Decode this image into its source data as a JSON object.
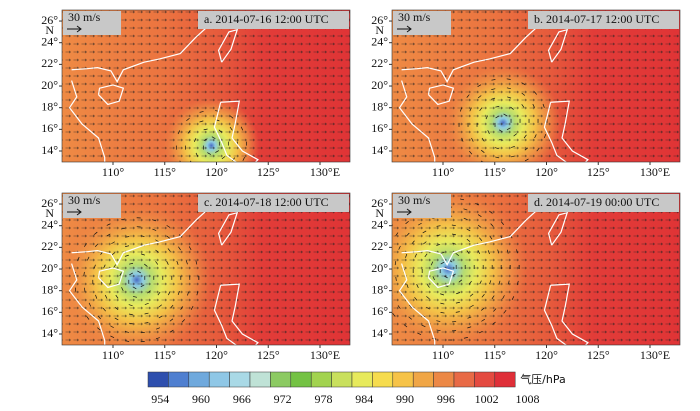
{
  "panels": [
    {
      "label": "a. 2014-07-16 12:00 UTC",
      "scale": "30 m/s"
    },
    {
      "label": "b. 2014-07-17 12:00 UTC",
      "scale": "30 m/s"
    },
    {
      "label": "c. 2014-07-18 12:00 UTC",
      "scale": "30 m/s"
    },
    {
      "label": "d. 2014-07-19 00:00 UTC",
      "scale": "30 m/s"
    }
  ],
  "yticks": [
    {
      "value": 26,
      "label": "26°"
    },
    {
      "value": 24,
      "label": "24°"
    },
    {
      "value": 22,
      "label": "22°"
    },
    {
      "value": 20,
      "label": "20°"
    },
    {
      "value": 18,
      "label": "18°"
    },
    {
      "value": 16,
      "label": "16°"
    },
    {
      "value": 14,
      "label": "14°"
    }
  ],
  "y_unit": "N",
  "xticks": [
    {
      "value": 110,
      "label": "110°"
    },
    {
      "value": 115,
      "label": "115°"
    },
    {
      "value": 120,
      "label": "120°"
    },
    {
      "value": 125,
      "label": "125°"
    },
    {
      "value": 130,
      "label": "130°E"
    }
  ],
  "colorbar": {
    "colors": [
      "#2e4fae",
      "#4f7fd0",
      "#6fa9dd",
      "#8fc7e6",
      "#a9d9e6",
      "#bfe2d6",
      "#8cca62",
      "#74c244",
      "#a2d34f",
      "#c9e05d",
      "#e7ea5c",
      "#f6dc4e",
      "#f6c348",
      "#f0a646",
      "#ec8846",
      "#e86a46",
      "#e44a40",
      "#df2f38"
    ],
    "ticks": [
      954,
      960,
      966,
      972,
      978,
      984,
      990,
      996,
      1002,
      1008
    ],
    "label": "气压/hPa"
  }
}
